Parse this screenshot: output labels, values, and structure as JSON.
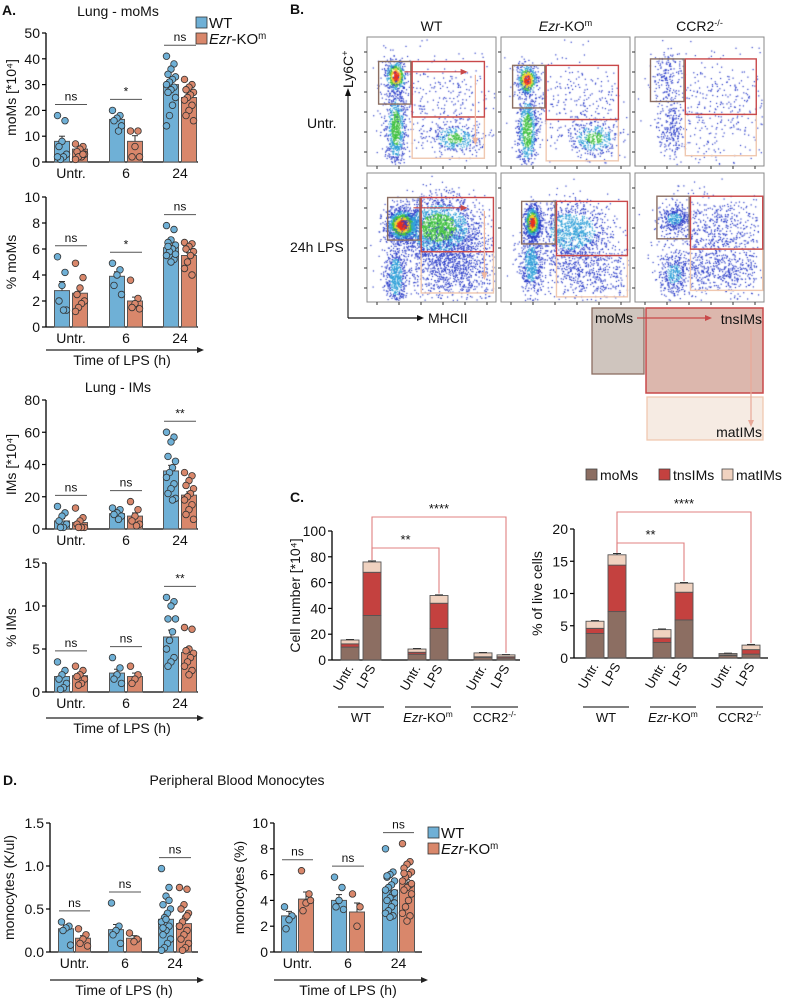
{
  "panels": {
    "a": "A.",
    "b": "B.",
    "c": "C.",
    "d": "D."
  },
  "legend_genotype": {
    "wt": "WT",
    "ko_italic": "Ezr",
    "ko_rest": "-KO",
    "ko_sup": "m",
    "wt_color": "#6fb0d6",
    "ko_color": "#d9876b"
  },
  "legend_cells": {
    "items": [
      "moMs",
      "tnsIMs",
      "matIMs"
    ],
    "colors": [
      "#8c6e62",
      "#c4413f",
      "#f0d2c0"
    ]
  },
  "flow": {
    "columns": [
      {
        "italic": "",
        "text": "WT",
        "sup": ""
      },
      {
        "italic": "Ezr",
        "text": "-KO",
        "sup": "m"
      },
      {
        "italic": "",
        "text": "CCR2",
        "sup": "-/-"
      }
    ],
    "rows": [
      "Untr.",
      "24h LPS"
    ],
    "y_axis": "Ly6C",
    "y_axis_sup": "+",
    "x_axis": "MHCII",
    "scheme": {
      "mo": "moMs",
      "tns": "tnsIMs",
      "mat": "matIMs"
    }
  },
  "panel_d_title": "Peripheral Blood Monocytes",
  "chart_data": [
    {
      "id": "lung-moms-count",
      "type": "bar",
      "title": "Lung - moMs",
      "ylabel": "moMs [*10⁴]",
      "xlabel": "",
      "categories": [
        "Untr.",
        "6",
        "24"
      ],
      "ylim": [
        0,
        50
      ],
      "yticks": [
        "0",
        "10",
        "20",
        "30",
        "40",
        "50"
      ],
      "series": [
        {
          "name": "WT",
          "color": "#6fb0d6",
          "mean": [
            8,
            16.5,
            30
          ],
          "sem": [
            2,
            1,
            1.6
          ],
          "points": [
            [
              18,
              16,
              8,
              6,
              3,
              2,
              1,
              2
            ],
            [
              20,
              18,
              17,
              16,
              14,
              12
            ],
            [
              41,
              38,
              36,
              34,
              33,
              32,
              31,
              30,
              29,
              28,
              27,
              25,
              22,
              18,
              14
            ]
          ]
        },
        {
          "name": "Ezr-KOm",
          "color": "#d9876b",
          "mean": [
            5,
            8,
            25
          ],
          "sem": [
            0.7,
            2.2,
            1.3
          ],
          "points": [
            [
              7,
              6,
              5,
              4,
              3,
              2,
              2,
              1,
              3
            ],
            [
              12,
              12,
              6,
              2,
              2
            ],
            [
              32,
              30,
              29,
              28,
              27,
              26,
              25,
              24,
              22,
              20,
              18,
              16
            ]
          ]
        }
      ],
      "significance": [
        "ns",
        "*",
        "ns"
      ]
    },
    {
      "id": "lung-moms-percent",
      "type": "bar",
      "title": "",
      "ylabel": "% moMs",
      "xlabel": "Time of LPS (h)",
      "categories": [
        "Untr.",
        "6",
        "24"
      ],
      "ylim": [
        0,
        10
      ],
      "yticks": [
        "0",
        "2",
        "4",
        "6",
        "8",
        "10"
      ],
      "series": [
        {
          "name": "WT",
          "color": "#6fb0d6",
          "mean": [
            2.8,
            3.9,
            6.1
          ],
          "sem": [
            0.7,
            0.35,
            0.2
          ],
          "points": [
            [
              5.4,
              4.2,
              3.2,
              2,
              1.3,
              1.3
            ],
            [
              4.9,
              4.4,
              4,
              3.2,
              2.5
            ],
            [
              7.8,
              7.5,
              6.7,
              6.5,
              6.3,
              6,
              5.8,
              5.5,
              5.2,
              5,
              6.2,
              5.6
            ]
          ]
        },
        {
          "name": "Ezr-KOm",
          "color": "#d9876b",
          "mean": [
            2.6,
            2.0,
            5.5
          ],
          "sem": [
            0.4,
            0.3,
            0.2
          ],
          "points": [
            [
              4.9,
              3.8,
              3,
              2.5,
              2,
              1.8,
              1.5,
              1.2
            ],
            [
              3.6,
              2.2,
              1.8,
              1.5,
              1.4
            ],
            [
              6.5,
              6.4,
              6.2,
              6,
              5.8,
              5.5,
              5,
              4.5,
              4
            ]
          ]
        }
      ],
      "significance": [
        "ns",
        "*",
        "ns"
      ]
    },
    {
      "id": "lung-ims-count",
      "type": "bar",
      "title": "Lung - IMs",
      "ylabel": "IMs [*10⁴]",
      "xlabel": "",
      "categories": [
        "Untr.",
        "6",
        "24"
      ],
      "ylim": [
        0,
        80
      ],
      "yticks": [
        "0",
        "20",
        "40",
        "60",
        "80"
      ],
      "series": [
        {
          "name": "WT",
          "color": "#6fb0d6",
          "mean": [
            5,
            9.5,
            36
          ],
          "sem": [
            1.5,
            1,
            3.5
          ],
          "points": [
            [
              14,
              10,
              8,
              5,
              3,
              1,
              1
            ],
            [
              13,
              12,
              10,
              9,
              8,
              6
            ],
            [
              60,
              57,
              54,
              45,
              42,
              38,
              35,
              32,
              28,
              25,
              22,
              19,
              18
            ]
          ]
        },
        {
          "name": "Ezr-KOm",
          "color": "#d9876b",
          "mean": [
            4,
            8,
            21
          ],
          "sem": [
            1.3,
            2,
            2
          ],
          "points": [
            [
              13,
              7,
              5,
              3,
              1,
              1,
              1
            ],
            [
              17,
              12,
              8,
              5,
              3,
              2
            ],
            [
              35,
              33,
              30,
              27,
              25,
              22,
              20,
              18,
              15,
              12,
              9,
              6
            ]
          ]
        }
      ],
      "significance": [
        "ns",
        "ns",
        "**"
      ]
    },
    {
      "id": "lung-ims-percent",
      "type": "bar",
      "title": "",
      "ylabel": "% IMs",
      "xlabel": "Time of LPS (h)",
      "categories": [
        "Untr.",
        "6",
        "24"
      ],
      "ylim": [
        0,
        15
      ],
      "yticks": [
        "0",
        "5",
        "10",
        "15"
      ],
      "series": [
        {
          "name": "WT",
          "color": "#6fb0d6",
          "mean": [
            1.8,
            2.2,
            6.4
          ],
          "sem": [
            0.4,
            0.45,
            0.8
          ],
          "points": [
            [
              3.5,
              2.5,
              2,
              1.5,
              1,
              0.5,
              0.3
            ],
            [
              4,
              2.8,
              2,
              1.5,
              1
            ],
            [
              11,
              10.5,
              10,
              8.5,
              8.5,
              7,
              6,
              5,
              4,
              3.5,
              3
            ]
          ]
        },
        {
          "name": "Ezr-KOm",
          "color": "#d9876b",
          "mean": [
            1.9,
            1.8,
            4.6
          ],
          "sem": [
            0.25,
            0.4,
            0.5
          ],
          "points": [
            [
              3,
              2.5,
              2,
              1.8,
              1.5,
              1,
              0.8
            ],
            [
              3,
              2,
              1.5,
              1
            ],
            [
              7.5,
              7.3,
              5,
              4.8,
              4.5,
              4,
              3.5,
              3,
              2.5,
              2
            ]
          ]
        }
      ],
      "significance": [
        "ns",
        "ns",
        "**"
      ]
    },
    {
      "id": "cell-number",
      "type": "bar",
      "stacked": true,
      "ylabel": "Cell number [*10⁴]",
      "ylim": [
        0,
        100
      ],
      "yticks": [
        "0",
        "20",
        "40",
        "60",
        "80",
        "100"
      ],
      "groups": [
        {
          "italic": "",
          "text": "WT",
          "sup": ""
        },
        {
          "italic": "Ezr",
          "text": "-KO",
          "sup": "m"
        },
        {
          "italic": "",
          "text": "CCR2",
          "sup": "-/-"
        }
      ],
      "conditions": [
        "Untr.",
        "LPS"
      ],
      "series": [
        {
          "name": "moMs",
          "color": "#8c6e62",
          "values": [
            10,
            34.5,
            4.5,
            24.5,
            2,
            1.5
          ],
          "sem": [
            1.5,
            3.5,
            0.8,
            2,
            0.3,
            0.3
          ]
        },
        {
          "name": "tnsIMs",
          "color": "#c4413f",
          "values": [
            2.5,
            33.5,
            1.5,
            19.5,
            0.5,
            1
          ],
          "sem": [
            0.8,
            3,
            0.5,
            1.5,
            0.2,
            0.2
          ]
        },
        {
          "name": "matIMs",
          "color": "#f0d2c0",
          "values": [
            3,
            8,
            2.5,
            6,
            3,
            1.5
          ],
          "sem": [
            0.4,
            0.8,
            0.4,
            0.5,
            0.3,
            0.2
          ]
        }
      ],
      "comparisons": [
        {
          "from": 1,
          "to": 3,
          "label": "**"
        },
        {
          "from": 1,
          "to": 5,
          "label": "****"
        }
      ]
    },
    {
      "id": "percent-live",
      "type": "bar",
      "stacked": true,
      "ylabel": "% of live cells",
      "ylim": [
        0,
        20
      ],
      "yticks": [
        "0",
        "5",
        "10",
        "15",
        "20"
      ],
      "groups": [
        {
          "italic": "",
          "text": "WT",
          "sup": ""
        },
        {
          "italic": "Ezr",
          "text": "-KO",
          "sup": "m"
        },
        {
          "italic": "",
          "text": "CCR2",
          "sup": "-/-"
        }
      ],
      "conditions": [
        "Untr.",
        "LPS"
      ],
      "series": [
        {
          "name": "moMs",
          "color": "#8c6e62",
          "values": [
            3.8,
            7.2,
            2.4,
            5.9,
            0.4,
            0.6
          ],
          "sem": [
            0.6,
            0.6,
            0.3,
            0.3,
            0.05,
            0.1
          ]
        },
        {
          "name": "tnsIMs",
          "color": "#c4413f",
          "values": [
            0.8,
            7.2,
            0.7,
            4.3,
            0.1,
            0.7
          ],
          "sem": [
            0.1,
            0.6,
            0.2,
            0.3,
            0.02,
            0.1
          ]
        },
        {
          "name": "matIMs",
          "color": "#f0d2c0",
          "values": [
            1.1,
            1.6,
            1.3,
            1.4,
            0.2,
            0.7
          ],
          "sem": [
            0.1,
            0.2,
            0.1,
            0.1,
            0.05,
            0.1
          ]
        }
      ],
      "comparisons": [
        {
          "from": 1,
          "to": 3,
          "label": "**"
        },
        {
          "from": 1,
          "to": 5,
          "label": "****"
        }
      ]
    },
    {
      "id": "blood-monocytes-count",
      "type": "bar",
      "title": "",
      "ylabel": "monocytes (K/ul)",
      "xlabel": "Time of LPS (h)",
      "categories": [
        "Untr.",
        "6",
        "24"
      ],
      "ylim": [
        0,
        1.5
      ],
      "yticks": [
        "0.0",
        "0.5",
        "1.0",
        "1.5"
      ],
      "series": [
        {
          "name": "WT",
          "color": "#6fb0d6",
          "mean": [
            0.27,
            0.26,
            0.38
          ],
          "sem": [
            0.04,
            0.06,
            0.06
          ],
          "points": [
            [
              0.35,
              0.3,
              0.28,
              0.25,
              0.08
            ],
            [
              0.57,
              0.3,
              0.25,
              0.2,
              0.1
            ],
            [
              0.97,
              0.75,
              0.65,
              0.55,
              0.5,
              0.45,
              0.4,
              0.35,
              0.3,
              0.25,
              0.2,
              0.15,
              0.1,
              0.05,
              0.02,
              0.6,
              0.38,
              0.28
            ]
          ]
        },
        {
          "name": "Ezr-KOm",
          "color": "#d9876b",
          "mean": [
            0.16,
            0.16,
            0.33
          ],
          "sem": [
            0.03,
            0.03,
            0.05
          ],
          "points": [
            [
              0.27,
              0.2,
              0.15,
              0.1,
              0.07
            ],
            [
              0.22,
              0.15,
              0.12
            ],
            [
              0.75,
              0.73,
              0.55,
              0.5,
              0.45,
              0.4,
              0.35,
              0.3,
              0.25,
              0.2,
              0.15,
              0.1,
              0.05,
              0.02,
              0.3,
              0.42
            ]
          ]
        }
      ],
      "significance": [
        "ns",
        "ns",
        "ns"
      ]
    },
    {
      "id": "blood-monocytes-percent",
      "type": "bar",
      "title": "",
      "ylabel": "monocytes (%)",
      "xlabel": "Time of LPS (h)",
      "categories": [
        "Untr.",
        "6",
        "24"
      ],
      "ylim": [
        0,
        10
      ],
      "yticks": [
        "0",
        "2",
        "4",
        "6",
        "8",
        "10"
      ],
      "series": [
        {
          "name": "WT",
          "color": "#6fb0d6",
          "mean": [
            2.8,
            4.0,
            4.8
          ],
          "sem": [
            0.35,
            0.45,
            0.3
          ],
          "points": [
            [
              3.5,
              2.8,
              2.5,
              1.8
            ],
            [
              5.8,
              5,
              4,
              3.5,
              3.3
            ],
            [
              8,
              6.2,
              6,
              5.8,
              5.5,
              5.2,
              5,
              4.8,
              4.5,
              4.2,
              4,
              3.8,
              3.5,
              3.2,
              3,
              2.8,
              2.7,
              5.9,
              4.6
            ]
          ]
        },
        {
          "name": "Ezr-KOm",
          "color": "#d9876b",
          "mean": [
            4.1,
            3.1,
            5.3
          ],
          "sem": [
            0.55,
            0.7,
            0.3
          ],
          "points": [
            [
              6.3,
              4.5,
              3.8,
              3.2,
              4.0
            ],
            [
              4.5,
              3.5,
              2
            ],
            [
              8.4,
              7,
              6.8,
              6.5,
              6.2,
              6,
              5.8,
              5.5,
              5.2,
              5,
              4.8,
              4.5,
              4,
              3.5,
              3,
              2.8,
              2.4,
              6.1,
              5.3
            ]
          ]
        }
      ],
      "significance": [
        "ns",
        "ns",
        "ns"
      ]
    }
  ]
}
